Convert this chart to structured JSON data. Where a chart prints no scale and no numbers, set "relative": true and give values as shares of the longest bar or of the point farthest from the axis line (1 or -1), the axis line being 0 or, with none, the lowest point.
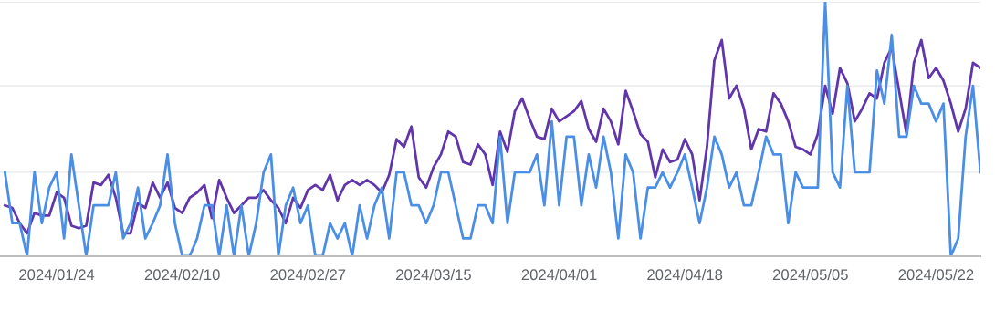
{
  "chart_data": {
    "type": "line",
    "relative": true,
    "ref_lines": [
      {
        "axis": "y",
        "value": 0.33,
        "color": "#e6e6e6"
      },
      {
        "axis": "y",
        "value": 0.67,
        "color": "#e6e6e6"
      },
      {
        "axis": "y",
        "value": 1,
        "color": "#e6e6e6"
      }
    ],
    "marker": "none",
    "line_style": "solid",
    "x": [
      "2024-01-17",
      "2024-01-18",
      "2024-01-19",
      "2024-01-20",
      "2024-01-21",
      "2024-01-22",
      "2024-01-23",
      "2024-01-24",
      "2024-01-25",
      "2024-01-26",
      "2024-01-27",
      "2024-01-28",
      "2024-01-29",
      "2024-01-30",
      "2024-01-31",
      "2024-02-01",
      "2024-02-02",
      "2024-02-03",
      "2024-02-04",
      "2024-02-05",
      "2024-02-06",
      "2024-02-07",
      "2024-02-08",
      "2024-02-09",
      "2024-02-10",
      "2024-02-11",
      "2024-02-12",
      "2024-02-13",
      "2024-02-14",
      "2024-02-15",
      "2024-02-16",
      "2024-02-17",
      "2024-02-18",
      "2024-02-19",
      "2024-02-20",
      "2024-02-21",
      "2024-02-22",
      "2024-02-23",
      "2024-02-24",
      "2024-02-25",
      "2024-02-26",
      "2024-02-27",
      "2024-02-28",
      "2024-02-29",
      "2024-03-01",
      "2024-03-02",
      "2024-03-03",
      "2024-03-04",
      "2024-03-05",
      "2024-03-06",
      "2024-03-07",
      "2024-03-08",
      "2024-03-09",
      "2024-03-10",
      "2024-03-11",
      "2024-03-12",
      "2024-03-13",
      "2024-03-14",
      "2024-03-15",
      "2024-03-16",
      "2024-03-17",
      "2024-03-18",
      "2024-03-19",
      "2024-03-20",
      "2024-03-21",
      "2024-03-22",
      "2024-03-23",
      "2024-03-24",
      "2024-03-25",
      "2024-03-26",
      "2024-03-27",
      "2024-03-28",
      "2024-03-29",
      "2024-03-30",
      "2024-03-31",
      "2024-04-01",
      "2024-04-02",
      "2024-04-03",
      "2024-04-04",
      "2024-04-05",
      "2024-04-06",
      "2024-04-07",
      "2024-04-08",
      "2024-04-09",
      "2024-04-10",
      "2024-04-11",
      "2024-04-12",
      "2024-04-13",
      "2024-04-14",
      "2024-04-15",
      "2024-04-16",
      "2024-04-17",
      "2024-04-18",
      "2024-04-19",
      "2024-04-20",
      "2024-04-21",
      "2024-04-22",
      "2024-04-23",
      "2024-04-24",
      "2024-04-25",
      "2024-04-26",
      "2024-04-27",
      "2024-04-28",
      "2024-04-29",
      "2024-04-30",
      "2024-05-01",
      "2024-05-02",
      "2024-05-03",
      "2024-05-04",
      "2024-05-05",
      "2024-05-06",
      "2024-05-07",
      "2024-05-08",
      "2024-05-09",
      "2024-05-10",
      "2024-05-11",
      "2024-05-12",
      "2024-05-13",
      "2024-05-14",
      "2024-05-15",
      "2024-05-16",
      "2024-05-17",
      "2024-05-18",
      "2024-05-19",
      "2024-05-20",
      "2024-05-21",
      "2024-05-22",
      "2024-05-23",
      "2024-05-24",
      "2024-05-25",
      "2024-05-26",
      "2024-05-27",
      "2024-05-28"
    ],
    "xlim": [
      "2024-01-16T08:00",
      "2024-05-28"
    ],
    "xticks": [
      {
        "value": "2024-01-24",
        "label": "2024/01/24"
      },
      {
        "value": "2024-02-10",
        "label": "2024/02/10"
      },
      {
        "value": "2024-02-27",
        "label": "2024/02/27"
      },
      {
        "value": "2024-03-15",
        "label": "2024/03/15"
      },
      {
        "value": "2024-04-01",
        "label": "2024/04/01"
      },
      {
        "value": "2024-04-18",
        "label": "2024/04/18"
      },
      {
        "value": "2024-05-05",
        "label": "2024/05/05"
      },
      {
        "value": "2024-05-22",
        "label": "2024/05/22"
      }
    ],
    "tick_labels": "x",
    "series": [
      {
        "color": "#6236ab",
        "values": [
          0.2,
          0.19,
          0.13,
          0.09,
          0.17,
          0.16,
          0.16,
          0.25,
          0.23,
          0.12,
          0.11,
          0.12,
          0.29,
          0.28,
          0.32,
          0.23,
          0.09,
          0.09,
          0.21,
          0.19,
          0.29,
          0.23,
          0.29,
          0.19,
          0.17,
          0.23,
          0.25,
          0.28,
          0.15,
          0.3,
          0.23,
          0.17,
          0.2,
          0.23,
          0.23,
          0.26,
          0.22,
          0.19,
          0.13,
          0.23,
          0.19,
          0.26,
          0.28,
          0.26,
          0.32,
          0.22,
          0.28,
          0.3,
          0.28,
          0.3,
          0.28,
          0.25,
          0.32,
          0.46,
          0.43,
          0.51,
          0.31,
          0.27,
          0.35,
          0.4,
          0.49,
          0.47,
          0.37,
          0.36,
          0.44,
          0.4,
          0.28,
          0.49,
          0.41,
          0.57,
          0.62,
          0.54,
          0.47,
          0.46,
          0.58,
          0.53,
          0.55,
          0.57,
          0.61,
          0.5,
          0.45,
          0.58,
          0.53,
          0.44,
          0.65,
          0.57,
          0.48,
          0.45,
          0.31,
          0.42,
          0.37,
          0.38,
          0.46,
          0.4,
          0.22,
          0.43,
          0.77,
          0.85,
          0.62,
          0.67,
          0.58,
          0.42,
          0.5,
          0.49,
          0.64,
          0.6,
          0.53,
          0.43,
          0.42,
          0.4,
          0.48,
          0.67,
          0.56,
          0.74,
          0.68,
          0.53,
          0.58,
          0.64,
          0.62,
          0.76,
          0.82,
          0.65,
          0.48,
          0.76,
          0.85,
          0.7,
          0.74,
          0.69,
          0.6,
          0.49,
          0.58,
          0.76,
          0.74
        ]
      },
      {
        "color": "#4a8ee6",
        "values": [
          0.33,
          0.13,
          0.13,
          0,
          0.33,
          0.13,
          0.27,
          0.33,
          0.07,
          0.4,
          0.2,
          0,
          0.2,
          0.2,
          0.2,
          0.33,
          0.07,
          0.13,
          0.27,
          0.07,
          0.13,
          0.2,
          0.4,
          0.13,
          0,
          0,
          0.07,
          0.2,
          0.2,
          0,
          0.2,
          0,
          0.2,
          0,
          0.13,
          0.33,
          0.4,
          0,
          0.2,
          0.27,
          0.13,
          0.2,
          0,
          0,
          0.13,
          0.07,
          0.13,
          0,
          0.2,
          0.07,
          0.2,
          0.27,
          0.07,
          0.33,
          0.33,
          0.2,
          0.2,
          0.13,
          0.2,
          0.33,
          0.33,
          0.2,
          0.07,
          0.07,
          0.2,
          0.2,
          0.13,
          0.47,
          0.13,
          0.33,
          0.33,
          0.33,
          0.4,
          0.2,
          0.53,
          0.2,
          0.47,
          0.47,
          0.2,
          0.4,
          0.27,
          0.47,
          0.33,
          0.07,
          0.4,
          0.33,
          0.07,
          0.27,
          0.27,
          0.33,
          0.27,
          0.33,
          0.4,
          0.27,
          0.13,
          0.27,
          0.47,
          0.4,
          0.27,
          0.33,
          0.2,
          0.2,
          0.33,
          0.47,
          0.4,
          0.4,
          0.13,
          0.33,
          0.27,
          0.27,
          0.27,
          1,
          0.33,
          0.27,
          0.67,
          0.33,
          0.33,
          0.33,
          0.73,
          0.6,
          0.87,
          0.47,
          0.47,
          0.67,
          0.6,
          0.6,
          0.53,
          0.6,
          0,
          0.07,
          0.47,
          0.67,
          0.33
        ]
      }
    ]
  }
}
